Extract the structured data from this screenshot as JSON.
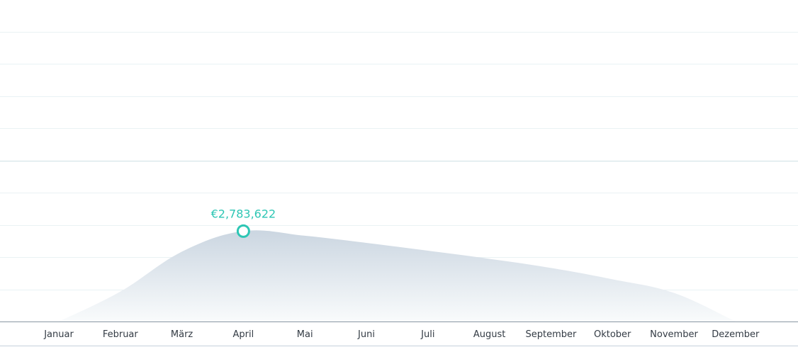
{
  "chart_data": {
    "type": "area",
    "title": "",
    "xlabel": "",
    "ylabel": "",
    "categories": [
      "Januar",
      "Februar",
      "März",
      "April",
      "Mai",
      "Juni",
      "Juli",
      "August",
      "September",
      "Oktober",
      "November",
      "Dezember"
    ],
    "series": [
      {
        "values": [
          0,
          920000,
          2150000,
          2783622,
          2640000,
          2420000,
          2180000,
          1930000,
          1650000,
          1300000,
          880000,
          0
        ]
      }
    ],
    "ylim": [
      0,
      9900000
    ],
    "grid": true,
    "legend": "none",
    "highlight": {
      "category": "April",
      "label": "€2,783,622"
    },
    "colors": {
      "area_top": "#cbd6e1",
      "area_bottom": "#f9fbfc",
      "highlight": "#2dc6b4",
      "gridline": "#e9f2f4",
      "gridline_mid": "#cfe1e5",
      "axis": "#8a97a3",
      "tick_text": "#333b44"
    }
  }
}
